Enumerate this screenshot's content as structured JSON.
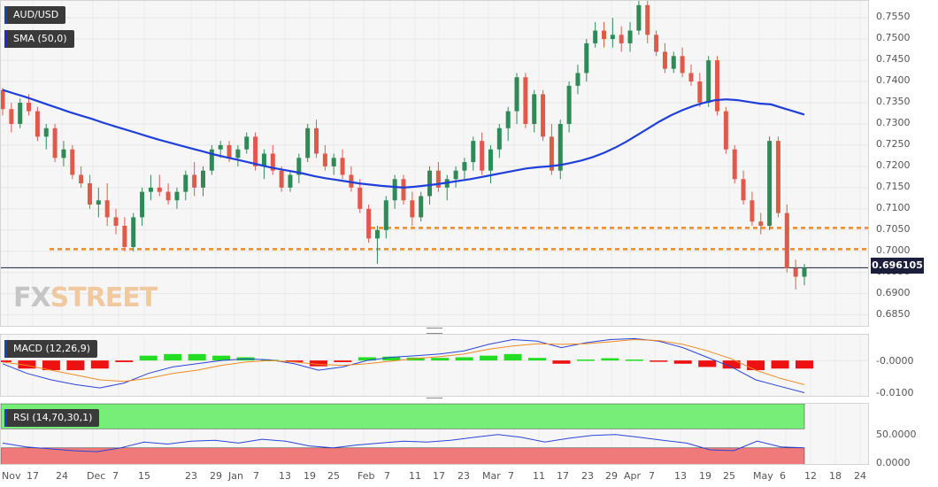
{
  "main": {
    "symbol": "AUD/USD",
    "indicator": "SMA (50,0)",
    "last_price": "0.696105",
    "logo_prefix": "FX",
    "logo_suffix": "STREET",
    "price_ticks": [
      "0.7550",
      "0.7500",
      "0.7450",
      "0.7400",
      "0.7350",
      "0.7300",
      "0.7250",
      "0.7200",
      "0.7150",
      "0.7100",
      "0.7050",
      "0.7000",
      "0.6950",
      "0.6900",
      "0.6850"
    ],
    "colors": {
      "up": "#2e8b57",
      "down": "#e05a4b",
      "sma": "#1f3fdb",
      "level": "#f08a24"
    }
  },
  "macd": {
    "label": "MACD (12,26,9)",
    "ticks": [
      "-0.0000",
      "-0.0100"
    ]
  },
  "rsi": {
    "label": "RSI (14,70,30,1)",
    "ticks": [
      "50.0000",
      "0.0000"
    ],
    "colors": {
      "overbought": "#77ee77",
      "oversold": "#f07a7a"
    }
  },
  "x_axis": [
    {
      "label": "Nov",
      "x": 8
    },
    {
      "label": "17",
      "x": 36
    },
    {
      "label": "24",
      "x": 69
    },
    {
      "label": "Dec",
      "x": 104
    },
    {
      "label": "7",
      "x": 133
    },
    {
      "label": "15",
      "x": 162
    },
    {
      "label": "23",
      "x": 215
    },
    {
      "label": "29",
      "x": 243
    },
    {
      "label": "Jan",
      "x": 264
    },
    {
      "label": "7",
      "x": 292
    },
    {
      "label": "13",
      "x": 321
    },
    {
      "label": "19",
      "x": 349
    },
    {
      "label": "25",
      "x": 376
    },
    {
      "label": "Feb",
      "x": 410
    },
    {
      "label": "7",
      "x": 440
    },
    {
      "label": "11",
      "x": 468
    },
    {
      "label": "17",
      "x": 495
    },
    {
      "label": "23",
      "x": 523
    },
    {
      "label": "Mar",
      "x": 551
    },
    {
      "label": "7",
      "x": 580
    },
    {
      "label": "11",
      "x": 608
    },
    {
      "label": "17",
      "x": 635
    },
    {
      "label": "23",
      "x": 663
    },
    {
      "label": "29",
      "x": 690
    },
    {
      "label": "Apr",
      "x": 711
    },
    {
      "label": "7",
      "x": 739
    },
    {
      "label": "13",
      "x": 768
    },
    {
      "label": "19",
      "x": 796
    },
    {
      "label": "25",
      "x": 823
    },
    {
      "label": "May",
      "x": 857
    },
    {
      "label": "6",
      "x": 887
    },
    {
      "label": "12",
      "x": 915
    },
    {
      "label": "18",
      "x": 943
    },
    {
      "label": "24",
      "x": 971
    }
  ],
  "chart_data": [
    {
      "type": "candlestick",
      "title": "AUD/USD",
      "ylim": [
        0.682,
        0.759
      ],
      "support_levels": [
        0.7005,
        0.7055
      ],
      "last": 0.696105,
      "candles": [
        [
          0.738,
          0.7385,
          0.732,
          0.7335
        ],
        [
          0.7335,
          0.735,
          0.728,
          0.73
        ],
        [
          0.73,
          0.736,
          0.729,
          0.735
        ],
        [
          0.735,
          0.737,
          0.732,
          0.733
        ],
        [
          0.733,
          0.734,
          0.726,
          0.727
        ],
        [
          0.727,
          0.73,
          0.724,
          0.729
        ],
        [
          0.729,
          0.73,
          0.721,
          0.722
        ],
        [
          0.722,
          0.726,
          0.72,
          0.724
        ],
        [
          0.724,
          0.725,
          0.717,
          0.718
        ],
        [
          0.718,
          0.72,
          0.715,
          0.716
        ],
        [
          0.716,
          0.718,
          0.71,
          0.711
        ],
        [
          0.711,
          0.715,
          0.708,
          0.712
        ],
        [
          0.712,
          0.716,
          0.706,
          0.708
        ],
        [
          0.708,
          0.71,
          0.704,
          0.706
        ],
        [
          0.706,
          0.708,
          0.7,
          0.701
        ],
        [
          0.701,
          0.709,
          0.7,
          0.708
        ],
        [
          0.708,
          0.715,
          0.706,
          0.714
        ],
        [
          0.714,
          0.718,
          0.712,
          0.715
        ],
        [
          0.715,
          0.718,
          0.713,
          0.714
        ],
        [
          0.714,
          0.716,
          0.711,
          0.712
        ],
        [
          0.712,
          0.715,
          0.71,
          0.714
        ],
        [
          0.714,
          0.719,
          0.712,
          0.718
        ],
        [
          0.718,
          0.721,
          0.713,
          0.715
        ],
        [
          0.715,
          0.72,
          0.713,
          0.719
        ],
        [
          0.719,
          0.725,
          0.718,
          0.724
        ],
        [
          0.724,
          0.726,
          0.722,
          0.725
        ],
        [
          0.725,
          0.726,
          0.721,
          0.722
        ],
        [
          0.722,
          0.725,
          0.72,
          0.724
        ],
        [
          0.724,
          0.728,
          0.723,
          0.727
        ],
        [
          0.727,
          0.728,
          0.719,
          0.72
        ],
        [
          0.72,
          0.724,
          0.717,
          0.723
        ],
        [
          0.723,
          0.725,
          0.718,
          0.719
        ],
        [
          0.719,
          0.72,
          0.714,
          0.715
        ],
        [
          0.715,
          0.719,
          0.714,
          0.718
        ],
        [
          0.718,
          0.723,
          0.716,
          0.722
        ],
        [
          0.722,
          0.73,
          0.721,
          0.729
        ],
        [
          0.729,
          0.731,
          0.722,
          0.723
        ],
        [
          0.723,
          0.725,
          0.719,
          0.72
        ],
        [
          0.72,
          0.723,
          0.718,
          0.722
        ],
        [
          0.722,
          0.724,
          0.717,
          0.718
        ],
        [
          0.718,
          0.72,
          0.714,
          0.715
        ],
        [
          0.715,
          0.717,
          0.709,
          0.71
        ],
        [
          0.71,
          0.711,
          0.702,
          0.703
        ],
        [
          0.703,
          0.706,
          0.697,
          0.705
        ],
        [
          0.705,
          0.713,
          0.703,
          0.712
        ],
        [
          0.712,
          0.718,
          0.71,
          0.717
        ],
        [
          0.717,
          0.718,
          0.711,
          0.712
        ],
        [
          0.712,
          0.714,
          0.706,
          0.708
        ],
        [
          0.708,
          0.714,
          0.707,
          0.713
        ],
        [
          0.713,
          0.72,
          0.711,
          0.719
        ],
        [
          0.719,
          0.721,
          0.714,
          0.715
        ],
        [
          0.715,
          0.718,
          0.712,
          0.717
        ],
        [
          0.717,
          0.72,
          0.715,
          0.719
        ],
        [
          0.719,
          0.722,
          0.717,
          0.721
        ],
        [
          0.721,
          0.727,
          0.719,
          0.726
        ],
        [
          0.726,
          0.728,
          0.718,
          0.719
        ],
        [
          0.719,
          0.725,
          0.716,
          0.724
        ],
        [
          0.724,
          0.73,
          0.722,
          0.729
        ],
        [
          0.729,
          0.734,
          0.726,
          0.733
        ],
        [
          0.733,
          0.742,
          0.73,
          0.741
        ],
        [
          0.741,
          0.742,
          0.729,
          0.73
        ],
        [
          0.73,
          0.738,
          0.728,
          0.737
        ],
        [
          0.737,
          0.738,
          0.726,
          0.727
        ],
        [
          0.727,
          0.73,
          0.718,
          0.719
        ],
        [
          0.719,
          0.731,
          0.717,
          0.73
        ],
        [
          0.73,
          0.74,
          0.728,
          0.739
        ],
        [
          0.739,
          0.744,
          0.737,
          0.742
        ],
        [
          0.742,
          0.75,
          0.74,
          0.749
        ],
        [
          0.749,
          0.754,
          0.748,
          0.752
        ],
        [
          0.752,
          0.754,
          0.748,
          0.75
        ],
        [
          0.75,
          0.755,
          0.748,
          0.751
        ],
        [
          0.751,
          0.753,
          0.747,
          0.749
        ],
        [
          0.749,
          0.754,
          0.747,
          0.752
        ],
        [
          0.752,
          0.759,
          0.751,
          0.758
        ],
        [
          0.758,
          0.759,
          0.749,
          0.751
        ],
        [
          0.751,
          0.752,
          0.746,
          0.747
        ],
        [
          0.747,
          0.749,
          0.742,
          0.743
        ],
        [
          0.743,
          0.747,
          0.742,
          0.746
        ],
        [
          0.746,
          0.748,
          0.741,
          0.742
        ],
        [
          0.742,
          0.744,
          0.739,
          0.74
        ],
        [
          0.74,
          0.742,
          0.734,
          0.735
        ],
        [
          0.735,
          0.746,
          0.734,
          0.745
        ],
        [
          0.745,
          0.746,
          0.732,
          0.733
        ],
        [
          0.733,
          0.734,
          0.723,
          0.724
        ],
        [
          0.724,
          0.725,
          0.716,
          0.717
        ],
        [
          0.717,
          0.719,
          0.711,
          0.712
        ],
        [
          0.712,
          0.714,
          0.706,
          0.707
        ],
        [
          0.707,
          0.709,
          0.704,
          0.706
        ],
        [
          0.706,
          0.727,
          0.705,
          0.726
        ],
        [
          0.726,
          0.727,
          0.708,
          0.709
        ],
        [
          0.709,
          0.711,
          0.695,
          0.696
        ],
        [
          0.696,
          0.698,
          0.691,
          0.694
        ],
        [
          0.694,
          0.697,
          0.692,
          0.6961
        ]
      ],
      "sma_50": [
        0.738,
        0.7372,
        0.7364,
        0.7355,
        0.7346,
        0.7337,
        0.7328,
        0.732,
        0.7312,
        0.7303,
        0.7295,
        0.7287,
        0.7279,
        0.7271,
        0.7263,
        0.7256,
        0.7249,
        0.7242,
        0.7235,
        0.7228,
        0.7222,
        0.7216,
        0.721,
        0.7204,
        0.7198,
        0.7193,
        0.7188,
        0.7183,
        0.7177,
        0.7172,
        0.7168,
        0.7164,
        0.716,
        0.7157,
        0.7154,
        0.7152,
        0.715,
        0.7152,
        0.7155,
        0.7158,
        0.7162,
        0.7166,
        0.717,
        0.7175,
        0.718,
        0.7185,
        0.719,
        0.7195,
        0.7198,
        0.72,
        0.7203,
        0.7208,
        0.7214,
        0.7222,
        0.7232,
        0.7244,
        0.7258,
        0.7274,
        0.729,
        0.7306,
        0.732,
        0.7332,
        0.7342,
        0.735,
        0.7356,
        0.7358,
        0.7356,
        0.7352,
        0.7348,
        0.7346,
        0.7338,
        0.733,
        0.7322
      ]
    },
    {
      "type": "line",
      "title": "MACD (12,26,9)",
      "series": [
        {
          "name": "MACD",
          "values": [
            -0.001,
            -0.004,
            -0.006,
            -0.0075,
            -0.0085,
            -0.007,
            -0.004,
            -0.002,
            -0.001,
            0.0,
            0.0005,
            0.0002,
            -0.001,
            -0.003,
            -0.002,
            0.0,
            0.001,
            0.0015,
            0.002,
            0.003,
            0.005,
            0.0065,
            0.006,
            0.004,
            0.0055,
            0.0065,
            0.0068,
            0.006,
            0.004,
            0.001,
            -0.002,
            -0.006,
            -0.008,
            -0.01
          ]
        },
        {
          "name": "Signal",
          "values": [
            -0.0005,
            -0.0015,
            -0.003,
            -0.0045,
            -0.006,
            -0.0065,
            -0.0055,
            -0.004,
            -0.003,
            -0.0015,
            -0.0005,
            0.0,
            -0.0005,
            -0.0012,
            -0.0015,
            -0.001,
            -0.0002,
            0.0006,
            0.0012,
            0.002,
            0.0035,
            0.0045,
            0.0052,
            0.005,
            0.0052,
            0.0058,
            0.0065,
            0.0062,
            0.005,
            0.003,
            0.0005,
            -0.003,
            -0.0055,
            -0.0075
          ]
        }
      ],
      "histogram": [
        -0.0005,
        -0.0025,
        -0.003,
        -0.003,
        -0.0025,
        -0.0005,
        0.0015,
        0.002,
        0.002,
        0.0015,
        0.001,
        0.0002,
        -0.0005,
        -0.0018,
        -0.0005,
        0.001,
        0.0012,
        0.0009,
        0.0008,
        0.001,
        0.0015,
        0.002,
        0.0008,
        -0.001,
        0.0003,
        0.0007,
        0.0003,
        -0.0002,
        -0.001,
        -0.002,
        -0.0025,
        -0.003,
        -0.0025,
        -0.0025
      ],
      "ylim": [
        -0.0115,
        0.008
      ]
    },
    {
      "type": "line",
      "title": "RSI (14,70,30,1)",
      "series": [
        {
          "name": "RSI",
          "values": [
            40,
            32,
            28,
            24,
            22,
            30,
            42,
            38,
            44,
            46,
            40,
            48,
            44,
            34,
            30,
            36,
            40,
            44,
            42,
            46,
            52,
            58,
            52,
            42,
            50,
            56,
            58,
            52,
            46,
            40,
            26,
            24,
            44,
            32,
            30
          ]
        }
      ],
      "ylim": [
        0,
        100
      ],
      "bands": [
        70,
        30
      ]
    }
  ]
}
